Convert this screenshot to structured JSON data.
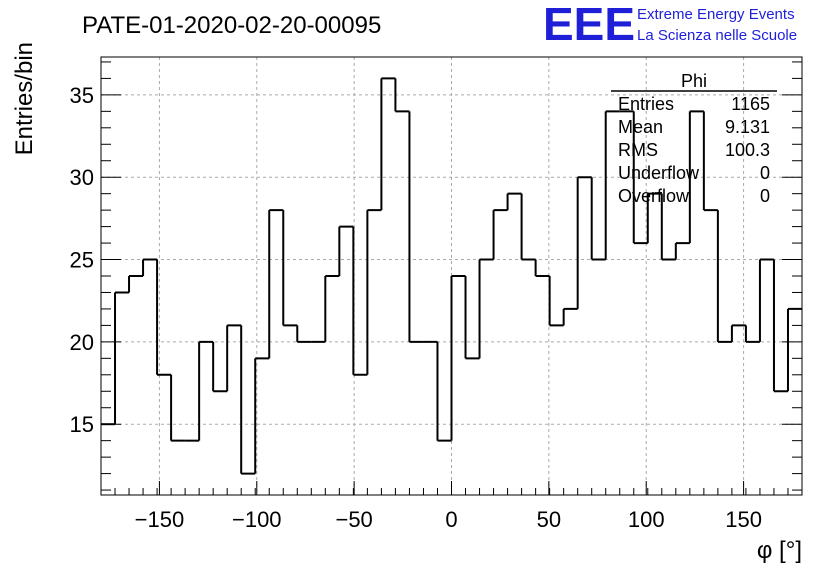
{
  "title": "PATE-01-2020-02-20-00095",
  "brand": {
    "logo_text": "EEE",
    "line1": "Extreme Energy Events",
    "line2": "La Scienza nelle Scuole",
    "color": "#1f1fd8"
  },
  "stats_box": {
    "name": "Phi",
    "rows": [
      {
        "label": "Entries",
        "value": "1165"
      },
      {
        "label": "Mean",
        "value": "9.131"
      },
      {
        "label": "RMS",
        "value": "100.3"
      },
      {
        "label": "Underflow",
        "value": "0"
      },
      {
        "label": "Overflow",
        "value": "0"
      }
    ]
  },
  "chart_data": {
    "type": "histogram",
    "xlabel": "φ [°]",
    "ylabel": "Entries/bin",
    "xlim": [
      -180,
      180
    ],
    "ylim": [
      10.7,
      37.3
    ],
    "bin_width": 7.2,
    "bin_edges_start": -180,
    "x_ticks": [
      -150,
      -100,
      -50,
      0,
      50,
      100,
      150
    ],
    "x_tick_labels": [
      "−150",
      "−100",
      "−50",
      "0",
      "50",
      "100",
      "150"
    ],
    "y_ticks": [
      15,
      20,
      25,
      30,
      35
    ],
    "y_tick_labels": [
      "15",
      "20",
      "25",
      "30",
      "35"
    ],
    "values": [
      15,
      23,
      24,
      25,
      18,
      14,
      14,
      20,
      17,
      21,
      12,
      19,
      28,
      21,
      20,
      20,
      24,
      27,
      18,
      28,
      36,
      34,
      20,
      20,
      14,
      24,
      19,
      25,
      28,
      29,
      25,
      24,
      21,
      22,
      30,
      25,
      34,
      34,
      26,
      29,
      25,
      26,
      34,
      28,
      20,
      21,
      20,
      25,
      17,
      22
    ],
    "grid": true,
    "line_color": "#000000"
  }
}
